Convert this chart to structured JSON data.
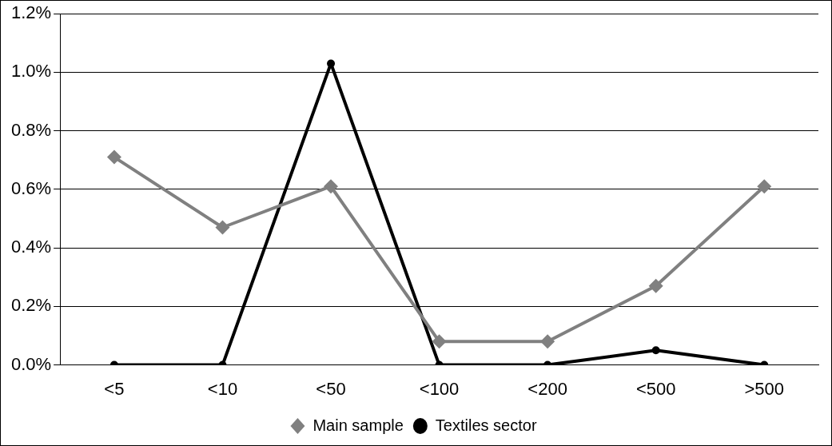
{
  "chart_data": {
    "type": "line",
    "categories": [
      "<5",
      "<10",
      "<50",
      "<100",
      "<200",
      "<500",
      ">500"
    ],
    "series": [
      {
        "name": "Main sample",
        "color": "#808080",
        "marker": "diamond",
        "values": [
          0.71,
          0.47,
          0.61,
          0.08,
          0.08,
          0.27,
          0.61
        ]
      },
      {
        "name": "Textiles sector",
        "color": "#000000",
        "marker": "circle",
        "values": [
          0,
          0,
          1.03,
          0,
          0,
          0.05,
          0
        ]
      }
    ],
    "ylim": [
      0,
      1.2
    ],
    "yticks": [
      {
        "value": 0,
        "label": "0.0%"
      },
      {
        "value": 0.2,
        "label": "0.2%"
      },
      {
        "value": 0.4,
        "label": "0.4%"
      },
      {
        "value": 0.6,
        "label": "0.6%"
      },
      {
        "value": 0.8,
        "label": "0.8%"
      },
      {
        "value": 1.0,
        "label": "1.0%"
      },
      {
        "value": 1.2,
        "label": "1.2%"
      }
    ],
    "grid": "y",
    "legend": "bottom",
    "line_style": "solid"
  }
}
